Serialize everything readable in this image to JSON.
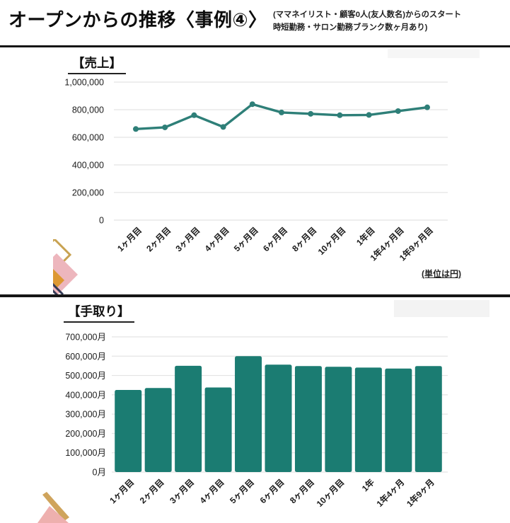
{
  "header": {
    "title": "オープンからの推移〈事例④〉",
    "subtitle_line1": "(ママネイリスト・顧客0人(友人数名)からのスタート",
    "subtitle_line2": "時短勤務・サロン勤務ブランク数ヶ月あり)"
  },
  "colors": {
    "accent_teal_line": "#2e7f78",
    "accent_teal_bar": "#1b7c72",
    "gridline": "#e4e4e4",
    "divider": "#161616",
    "text": "#1c1c1c"
  },
  "chart_data": [
    {
      "type": "line",
      "title": "【売上】",
      "unit_note": "(単位は円)",
      "categories": [
        "1ヶ月目",
        "2ヶ月目",
        "3ヶ月目",
        "4ヶ月目",
        "5ヶ月目",
        "6ヶ月目",
        "8ヶ月目",
        "10ヶ月目",
        "1年目",
        "1年4ヶ月目",
        "1年9ヶ月目"
      ],
      "values": [
        660000,
        672000,
        760000,
        675000,
        840000,
        780000,
        770000,
        760000,
        762000,
        790000,
        817000
      ],
      "xlabel": "",
      "ylabel": "",
      "ylim": [
        0,
        1000000
      ],
      "ytick_step": 200000,
      "ytick_labels": [
        "0",
        "200,000",
        "400,000",
        "600,000",
        "800,000",
        "1,000,000"
      ],
      "grid": true,
      "legend": false
    },
    {
      "type": "bar",
      "title": "【手取り】",
      "categories": [
        "1ヶ月目",
        "2ヶ月目",
        "3ヶ月目",
        "4ヶ月目",
        "5ヶ月目",
        "6ヶ月目",
        "8ヶ月目",
        "10ヶ月目",
        "1年",
        "1年4ヶ月",
        "1年9ヶ月"
      ],
      "values": [
        425000,
        435000,
        550000,
        438000,
        600000,
        556000,
        549000,
        545000,
        541000,
        536000,
        549000
      ],
      "xlabel": "",
      "ylabel": "",
      "ylim": [
        0,
        700000
      ],
      "ytick_step": 100000,
      "ytick_labels": [
        "0月",
        "100,000月",
        "200,000月",
        "300,000月",
        "400,000月",
        "500,000月",
        "600,000月",
        "700,000月"
      ],
      "grid": true,
      "legend": false
    }
  ]
}
